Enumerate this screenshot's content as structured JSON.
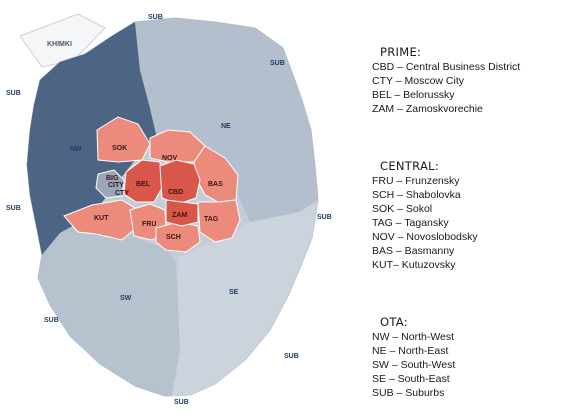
{
  "map": {
    "khimki_label": "KHIMKI",
    "sub_label": "SUB",
    "ota_labels": {
      "nw": "NW",
      "ne": "NE",
      "sw": "SW",
      "se": "SE"
    },
    "zone_labels": {
      "sok": "SOK",
      "nov": "NOV",
      "bas": "BAS",
      "kut": "KUT",
      "tag": "TAG",
      "bel": "BEL",
      "cbd": "CBD",
      "zam": "ZAM",
      "fru": "FRU",
      "sch": "SCH",
      "cty": "CTY",
      "big": "BIG",
      "city": "CITY"
    },
    "colors": {
      "ota_dark": "#4d6585",
      "ota_light": "#bcc7d4",
      "central": "#ec8a7c",
      "prime": "#d9564a"
    }
  },
  "legend": {
    "prime": {
      "heading": "PRIME:",
      "items": [
        "CBD – Central Business District",
        "CTY – Moscow City",
        "BEL – Belorussky",
        "ZAM – Zamoskvorechie"
      ]
    },
    "central": {
      "heading": "CENTRAL:",
      "items": [
        "FRU – Frunzensky",
        "SCH – Shabolovka",
        "SOK – Sokol",
        "TAG – Tagansky",
        "NOV – Novoslobodsky",
        "BAS – Basmanny",
        "KUT– Kutuzovsky"
      ]
    },
    "ota": {
      "heading": "OTA:",
      "items": [
        "NW – North-West",
        "NE – North-East",
        "SW – South-West",
        "SE – South-East",
        "SUB – Suburbs"
      ]
    }
  }
}
